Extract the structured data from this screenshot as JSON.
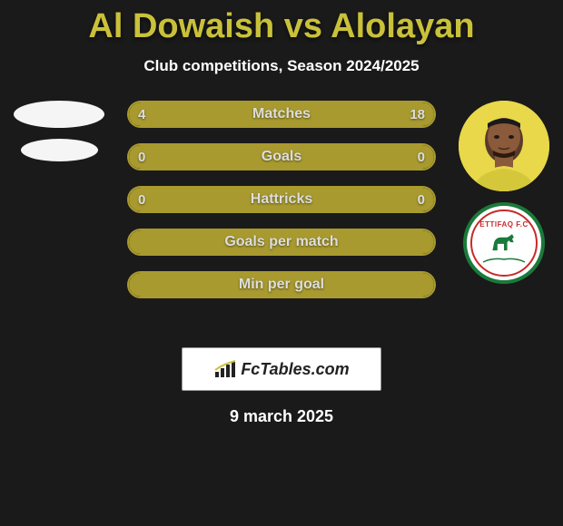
{
  "header": {
    "title": "Al Dowaish vs Alolayan",
    "subtitle": "Club competitions, Season 2024/2025"
  },
  "player_right": {
    "crest_text": "ETTIFAQ F.C",
    "crest_ring_color": "#c82a2a",
    "crest_border_color": "#1a7a3a",
    "avatar_bg": "#e8d84a"
  },
  "bars": {
    "border_color": "#a89a2e",
    "fill_color": "#a89a2e",
    "items": [
      {
        "label": "Matches",
        "left": "4",
        "right": "18",
        "left_pct": 18,
        "right_pct": 82
      },
      {
        "label": "Goals",
        "left": "0",
        "right": "0",
        "left_pct": 50,
        "right_pct": 50
      },
      {
        "label": "Hattricks",
        "left": "0",
        "right": "0",
        "left_pct": 50,
        "right_pct": 50
      },
      {
        "label": "Goals per match",
        "left": "",
        "right": "",
        "left_pct": 100,
        "right_pct": 0
      },
      {
        "label": "Min per goal",
        "left": "",
        "right": "",
        "left_pct": 100,
        "right_pct": 0
      }
    ]
  },
  "footer": {
    "logo_text": "FcTables.com",
    "date": "9 march 2025"
  }
}
